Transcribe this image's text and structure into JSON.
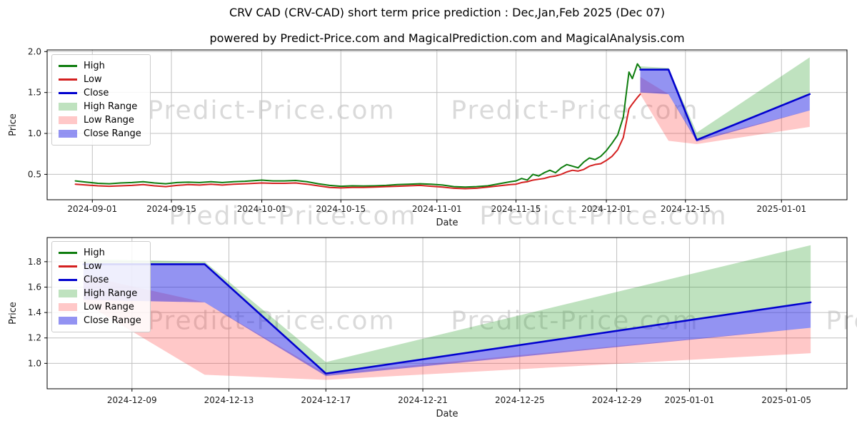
{
  "header": {
    "title": "CRV CAD (CRV-CAD) short term price prediction : Dec,Jan,Feb 2025 (Dec 07)",
    "subtitle": "powered by Predict-Price.com and MagicalPrediction.com and MagicalAnalysis.com"
  },
  "watermark": {
    "text": "Predict-Price.com"
  },
  "colors": {
    "background": "#ffffff",
    "grid": "#c0c0c0",
    "spine": "#000000",
    "tick_text": "#1a1a1a",
    "watermark_text": "#969696",
    "high_line": "#0e7d0e",
    "low_line": "#d42020",
    "close_line": "#0202cf",
    "high_range_fill": "rgba(44,160,44,0.30)",
    "low_range_fill": "rgba(255,50,50,0.27)",
    "close_range_fill": "rgba(40,40,230,0.50)"
  },
  "legend": {
    "position": "upper left",
    "entries": [
      {
        "label": "High",
        "swatch": "line",
        "color_key": "high_line"
      },
      {
        "label": "Low",
        "swatch": "line",
        "color_key": "low_line"
      },
      {
        "label": "Close",
        "swatch": "line",
        "color_key": "close_line"
      },
      {
        "label": "High Range",
        "swatch": "patch",
        "color_key": "high_range_fill"
      },
      {
        "label": "Low Range",
        "swatch": "patch",
        "color_key": "low_range_fill"
      },
      {
        "label": "Close Range",
        "swatch": "patch",
        "color_key": "close_range_fill"
      }
    ]
  },
  "chart_data": [
    {
      "type": "line",
      "name": "history-and-prediction",
      "xlabel": "Date",
      "ylabel": "Price",
      "x_unit": "days since 2024-08-24",
      "xlim": [
        0,
        141.6
      ],
      "ylim": [
        0.19,
        2.02
      ],
      "grid": true,
      "xticks": [
        {
          "pos": 8,
          "label": "2024-09-01"
        },
        {
          "pos": 22,
          "label": "2024-09-15"
        },
        {
          "pos": 38,
          "label": "2024-10-01"
        },
        {
          "pos": 52,
          "label": "2024-10-15"
        },
        {
          "pos": 69,
          "label": "2024-11-01"
        },
        {
          "pos": 83,
          "label": "2024-11-15"
        },
        {
          "pos": 99,
          "label": "2024-12-01"
        },
        {
          "pos": 113,
          "label": "2024-12-15"
        },
        {
          "pos": 130,
          "label": "2025-01-01"
        }
      ],
      "yticks": [
        {
          "pos": 0.5,
          "label": "0.5"
        },
        {
          "pos": 1.0,
          "label": "1.0"
        },
        {
          "pos": 1.5,
          "label": "1.5"
        },
        {
          "pos": 2.0,
          "label": "2.0"
        }
      ],
      "series": [
        {
          "name": "High",
          "points": [
            [
              5,
              0.42
            ],
            [
              7,
              0.405
            ],
            [
              9,
              0.39
            ],
            [
              11,
              0.385
            ],
            [
              13,
              0.395
            ],
            [
              15,
              0.4
            ],
            [
              17,
              0.41
            ],
            [
              19,
              0.395
            ],
            [
              21,
              0.385
            ],
            [
              23,
              0.4
            ],
            [
              25,
              0.405
            ],
            [
              27,
              0.4
            ],
            [
              29,
              0.41
            ],
            [
              31,
              0.4
            ],
            [
              33,
              0.41
            ],
            [
              35,
              0.415
            ],
            [
              38,
              0.43
            ],
            [
              40,
              0.42
            ],
            [
              42,
              0.42
            ],
            [
              44,
              0.425
            ],
            [
              46,
              0.41
            ],
            [
              48,
              0.385
            ],
            [
              50,
              0.365
            ],
            [
              52,
              0.355
            ],
            [
              54,
              0.36
            ],
            [
              56,
              0.358
            ],
            [
              58,
              0.36
            ],
            [
              60,
              0.365
            ],
            [
              62,
              0.375
            ],
            [
              64,
              0.38
            ],
            [
              66,
              0.385
            ],
            [
              68,
              0.38
            ],
            [
              70,
              0.37
            ],
            [
              72,
              0.35
            ],
            [
              74,
              0.345
            ],
            [
              76,
              0.35
            ],
            [
              78,
              0.36
            ],
            [
              80,
              0.385
            ],
            [
              82,
              0.41
            ],
            [
              83,
              0.42
            ],
            [
              84,
              0.45
            ],
            [
              85,
              0.43
            ],
            [
              86,
              0.5
            ],
            [
              87,
              0.48
            ],
            [
              88,
              0.52
            ],
            [
              89,
              0.55
            ],
            [
              90,
              0.52
            ],
            [
              91,
              0.58
            ],
            [
              92,
              0.62
            ],
            [
              93,
              0.6
            ],
            [
              94,
              0.58
            ],
            [
              95,
              0.65
            ],
            [
              96,
              0.7
            ],
            [
              97,
              0.68
            ],
            [
              98,
              0.72
            ],
            [
              99,
              0.79
            ],
            [
              100,
              0.88
            ],
            [
              101,
              0.98
            ],
            [
              102,
              1.2
            ],
            [
              103,
              1.75
            ],
            [
              103.6,
              1.67
            ],
            [
              104.5,
              1.85
            ],
            [
              105,
              1.8
            ]
          ]
        },
        {
          "name": "Low",
          "points": [
            [
              5,
              0.38
            ],
            [
              7,
              0.37
            ],
            [
              9,
              0.36
            ],
            [
              11,
              0.355
            ],
            [
              13,
              0.36
            ],
            [
              15,
              0.365
            ],
            [
              17,
              0.375
            ],
            [
              19,
              0.36
            ],
            [
              21,
              0.35
            ],
            [
              23,
              0.365
            ],
            [
              25,
              0.375
            ],
            [
              27,
              0.37
            ],
            [
              29,
              0.38
            ],
            [
              31,
              0.37
            ],
            [
              33,
              0.38
            ],
            [
              35,
              0.385
            ],
            [
              38,
              0.395
            ],
            [
              40,
              0.39
            ],
            [
              42,
              0.39
            ],
            [
              44,
              0.395
            ],
            [
              46,
              0.38
            ],
            [
              48,
              0.36
            ],
            [
              50,
              0.34
            ],
            [
              52,
              0.335
            ],
            [
              54,
              0.34
            ],
            [
              56,
              0.34
            ],
            [
              58,
              0.345
            ],
            [
              60,
              0.35
            ],
            [
              62,
              0.355
            ],
            [
              64,
              0.36
            ],
            [
              66,
              0.365
            ],
            [
              68,
              0.355
            ],
            [
              70,
              0.345
            ],
            [
              72,
              0.33
            ],
            [
              74,
              0.325
            ],
            [
              76,
              0.33
            ],
            [
              78,
              0.345
            ],
            [
              80,
              0.36
            ],
            [
              82,
              0.375
            ],
            [
              83,
              0.38
            ],
            [
              84,
              0.4
            ],
            [
              85,
              0.41
            ],
            [
              86,
              0.43
            ],
            [
              87,
              0.44
            ],
            [
              88,
              0.45
            ],
            [
              89,
              0.47
            ],
            [
              90,
              0.48
            ],
            [
              91,
              0.5
            ],
            [
              92,
              0.53
            ],
            [
              93,
              0.55
            ],
            [
              94,
              0.54
            ],
            [
              95,
              0.56
            ],
            [
              96,
              0.6
            ],
            [
              97,
              0.62
            ],
            [
              98,
              0.63
            ],
            [
              99,
              0.67
            ],
            [
              100,
              0.72
            ],
            [
              101,
              0.8
            ],
            [
              102,
              0.95
            ],
            [
              103,
              1.3
            ],
            [
              103.6,
              1.36
            ],
            [
              104.5,
              1.44
            ],
            [
              105,
              1.48
            ]
          ]
        },
        {
          "name": "Close",
          "points": [
            [
              105,
              1.78
            ],
            [
              110,
              1.78
            ],
            [
              115,
              0.92
            ],
            [
              135,
              1.48
            ]
          ]
        }
      ],
      "bands": [
        {
          "name": "High Range",
          "upper": [
            [
              105,
              1.82
            ],
            [
              110,
              1.8
            ],
            [
              115,
              1.01
            ],
            [
              135,
              1.93
            ]
          ],
          "lower": [
            [
              105,
              1.78
            ],
            [
              110,
              1.78
            ],
            [
              115,
              0.92
            ],
            [
              135,
              1.48
            ]
          ]
        },
        {
          "name": "Low Range",
          "upper": [
            [
              105,
              1.69
            ],
            [
              110,
              1.48
            ],
            [
              115,
              0.92
            ],
            [
              135,
              1.28
            ]
          ],
          "lower": [
            [
              105,
              1.48
            ],
            [
              110,
              0.91
            ],
            [
              115,
              0.87
            ],
            [
              135,
              1.08
            ]
          ]
        },
        {
          "name": "Close Range",
          "upper": [
            [
              105,
              1.78
            ],
            [
              110,
              1.78
            ],
            [
              115,
              0.92
            ],
            [
              135,
              1.48
            ]
          ],
          "lower": [
            [
              105,
              1.5
            ],
            [
              110,
              1.48
            ],
            [
              115,
              0.9
            ],
            [
              135,
              1.28
            ]
          ]
        }
      ]
    },
    {
      "type": "line",
      "name": "prediction-zoom",
      "xlabel": "Date",
      "ylabel": "Price",
      "x_unit": "days since 2024-12-07",
      "xlim": [
        -1.5,
        31.5
      ],
      "ylim": [
        0.8,
        1.99
      ],
      "grid": true,
      "xticks": [
        {
          "pos": 2,
          "label": "2024-12-09"
        },
        {
          "pos": 6,
          "label": "2024-12-13"
        },
        {
          "pos": 10,
          "label": "2024-12-17"
        },
        {
          "pos": 14,
          "label": "2024-12-21"
        },
        {
          "pos": 18,
          "label": "2024-12-25"
        },
        {
          "pos": 22,
          "label": "2024-12-29"
        },
        {
          "pos": 25,
          "label": "2025-01-01"
        },
        {
          "pos": 29,
          "label": "2025-01-05"
        }
      ],
      "yticks": [
        {
          "pos": 1.0,
          "label": "1.0"
        },
        {
          "pos": 1.2,
          "label": "1.2"
        },
        {
          "pos": 1.4,
          "label": "1.4"
        },
        {
          "pos": 1.6,
          "label": "1.6"
        },
        {
          "pos": 1.8,
          "label": "1.8"
        }
      ],
      "series": [
        {
          "name": "Close",
          "points": [
            [
              0,
              1.78
            ],
            [
              5,
              1.78
            ],
            [
              10,
              0.92
            ],
            [
              30,
              1.48
            ]
          ]
        }
      ],
      "bands": [
        {
          "name": "High Range",
          "upper": [
            [
              0,
              1.82
            ],
            [
              5,
              1.8
            ],
            [
              10,
              1.01
            ],
            [
              30,
              1.93
            ]
          ],
          "lower": [
            [
              0,
              1.78
            ],
            [
              5,
              1.78
            ],
            [
              10,
              0.92
            ],
            [
              30,
              1.48
            ]
          ]
        },
        {
          "name": "Low Range",
          "upper": [
            [
              0,
              1.69
            ],
            [
              5,
              1.48
            ],
            [
              10,
              0.92
            ],
            [
              30,
              1.28
            ]
          ],
          "lower": [
            [
              0,
              1.48
            ],
            [
              5,
              0.91
            ],
            [
              10,
              0.87
            ],
            [
              30,
              1.08
            ]
          ]
        },
        {
          "name": "Close Range",
          "upper": [
            [
              0,
              1.78
            ],
            [
              5,
              1.78
            ],
            [
              10,
              0.92
            ],
            [
              30,
              1.48
            ]
          ],
          "lower": [
            [
              0,
              1.5
            ],
            [
              5,
              1.48
            ],
            [
              10,
              0.9
            ],
            [
              30,
              1.28
            ]
          ]
        }
      ]
    }
  ]
}
